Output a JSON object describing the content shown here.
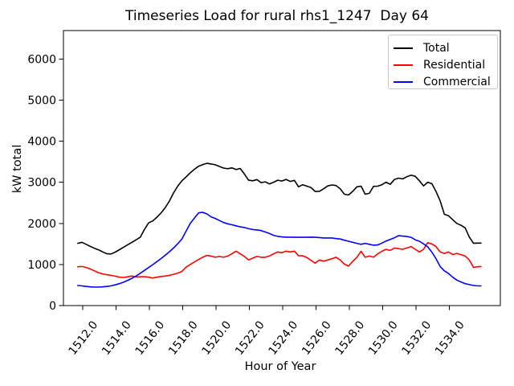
{
  "chart_data": {
    "type": "line",
    "title": "Timeseries Load for rural rhs1_1247  Day 64",
    "xlabel": "Hour of Year",
    "ylabel": "kW total",
    "xlim": [
      1510.84,
      1537.06
    ],
    "ylim": [
      0,
      6690
    ],
    "grid": false,
    "legend_position": "upper right",
    "xticks": {
      "values": [
        1512,
        1514,
        1516,
        1518,
        1520,
        1522,
        1524,
        1526,
        1528,
        1530,
        1532,
        1534
      ],
      "labels": [
        "1512.0",
        "1514.0",
        "1516.0",
        "1518.0",
        "1520.0",
        "1522.0",
        "1524.0",
        "1526.0",
        "1528.0",
        "1530.0",
        "1532.0",
        "1534.0"
      ]
    },
    "yticks": {
      "values": [
        0,
        1000,
        2000,
        3000,
        4000,
        5000,
        6000
      ],
      "labels": [
        "0",
        "1000",
        "2000",
        "3000",
        "4000",
        "5000",
        "6000"
      ]
    },
    "series": [
      {
        "name": "Total",
        "color": "#000000",
        "points": [
          [
            1511.7,
            1515
          ],
          [
            1511.95,
            1540
          ],
          [
            1512.2,
            1490
          ],
          [
            1512.45,
            1440
          ],
          [
            1512.7,
            1395
          ],
          [
            1512.95,
            1355
          ],
          [
            1513.2,
            1305
          ],
          [
            1513.45,
            1260
          ],
          [
            1513.7,
            1255
          ],
          [
            1513.95,
            1300
          ],
          [
            1514.2,
            1360
          ],
          [
            1514.45,
            1420
          ],
          [
            1514.7,
            1480
          ],
          [
            1514.95,
            1540
          ],
          [
            1515.2,
            1600
          ],
          [
            1515.45,
            1660
          ],
          [
            1515.7,
            1850
          ],
          [
            1515.95,
            2010
          ],
          [
            1516.2,
            2060
          ],
          [
            1516.45,
            2150
          ],
          [
            1516.7,
            2255
          ],
          [
            1516.95,
            2385
          ],
          [
            1517.2,
            2545
          ],
          [
            1517.45,
            2740
          ],
          [
            1517.7,
            2905
          ],
          [
            1517.95,
            3035
          ],
          [
            1518.2,
            3130
          ],
          [
            1518.45,
            3230
          ],
          [
            1518.7,
            3315
          ],
          [
            1518.95,
            3390
          ],
          [
            1519.2,
            3430
          ],
          [
            1519.45,
            3460
          ],
          [
            1519.7,
            3445
          ],
          [
            1519.95,
            3425
          ],
          [
            1520.2,
            3385
          ],
          [
            1520.45,
            3345
          ],
          [
            1520.7,
            3330
          ],
          [
            1520.95,
            3350
          ],
          [
            1521.2,
            3310
          ],
          [
            1521.45,
            3335
          ],
          [
            1521.7,
            3200
          ],
          [
            1521.95,
            3050
          ],
          [
            1522.2,
            3035
          ],
          [
            1522.45,
            3065
          ],
          [
            1522.7,
            2990
          ],
          [
            1522.95,
            3010
          ],
          [
            1523.2,
            2960
          ],
          [
            1523.45,
            3000
          ],
          [
            1523.7,
            3050
          ],
          [
            1523.95,
            3030
          ],
          [
            1524.2,
            3070
          ],
          [
            1524.45,
            3020
          ],
          [
            1524.7,
            3045
          ],
          [
            1524.95,
            2890
          ],
          [
            1525.2,
            2940
          ],
          [
            1525.45,
            2905
          ],
          [
            1525.7,
            2870
          ],
          [
            1525.95,
            2775
          ],
          [
            1526.2,
            2780
          ],
          [
            1526.45,
            2840
          ],
          [
            1526.7,
            2910
          ],
          [
            1526.95,
            2935
          ],
          [
            1527.2,
            2920
          ],
          [
            1527.45,
            2840
          ],
          [
            1527.7,
            2710
          ],
          [
            1527.95,
            2690
          ],
          [
            1528.2,
            2780
          ],
          [
            1528.45,
            2890
          ],
          [
            1528.7,
            2905
          ],
          [
            1528.95,
            2710
          ],
          [
            1529.2,
            2730
          ],
          [
            1529.45,
            2900
          ],
          [
            1529.7,
            2905
          ],
          [
            1529.95,
            2940
          ],
          [
            1530.2,
            3000
          ],
          [
            1530.45,
            2950
          ],
          [
            1530.7,
            3065
          ],
          [
            1530.95,
            3100
          ],
          [
            1531.2,
            3080
          ],
          [
            1531.45,
            3135
          ],
          [
            1531.7,
            3170
          ],
          [
            1531.95,
            3145
          ],
          [
            1532.2,
            3035
          ],
          [
            1532.45,
            2910
          ],
          [
            1532.7,
            3000
          ],
          [
            1532.95,
            2965
          ],
          [
            1533.2,
            2775
          ],
          [
            1533.45,
            2545
          ],
          [
            1533.7,
            2220
          ],
          [
            1533.95,
            2185
          ],
          [
            1534.2,
            2090
          ],
          [
            1534.45,
            2000
          ],
          [
            1534.7,
            1955
          ],
          [
            1534.95,
            1890
          ],
          [
            1535.2,
            1665
          ],
          [
            1535.45,
            1515
          ],
          [
            1535.7,
            1520
          ],
          [
            1535.9,
            1520
          ]
        ]
      },
      {
        "name": "Residential",
        "color": "#ff0000",
        "points": [
          [
            1511.7,
            945
          ],
          [
            1511.95,
            950
          ],
          [
            1512.2,
            930
          ],
          [
            1512.45,
            890
          ],
          [
            1512.7,
            845
          ],
          [
            1512.95,
            800
          ],
          [
            1513.2,
            770
          ],
          [
            1513.45,
            750
          ],
          [
            1513.7,
            735
          ],
          [
            1513.95,
            715
          ],
          [
            1514.2,
            690
          ],
          [
            1514.45,
            685
          ],
          [
            1514.7,
            700
          ],
          [
            1514.95,
            720
          ],
          [
            1515.2,
            695
          ],
          [
            1515.45,
            700
          ],
          [
            1515.7,
            705
          ],
          [
            1515.95,
            690
          ],
          [
            1516.2,
            670
          ],
          [
            1516.45,
            690
          ],
          [
            1516.7,
            708
          ],
          [
            1516.95,
            718
          ],
          [
            1517.2,
            735
          ],
          [
            1517.45,
            760
          ],
          [
            1517.7,
            790
          ],
          [
            1517.95,
            830
          ],
          [
            1518.2,
            935
          ],
          [
            1518.45,
            1000
          ],
          [
            1518.7,
            1060
          ],
          [
            1518.95,
            1120
          ],
          [
            1519.2,
            1175
          ],
          [
            1519.45,
            1220
          ],
          [
            1519.7,
            1205
          ],
          [
            1519.95,
            1175
          ],
          [
            1520.2,
            1195
          ],
          [
            1520.45,
            1175
          ],
          [
            1520.7,
            1205
          ],
          [
            1520.95,
            1260
          ],
          [
            1521.2,
            1325
          ],
          [
            1521.45,
            1260
          ],
          [
            1521.7,
            1195
          ],
          [
            1521.95,
            1110
          ],
          [
            1522.2,
            1155
          ],
          [
            1522.45,
            1195
          ],
          [
            1522.7,
            1175
          ],
          [
            1522.95,
            1175
          ],
          [
            1523.2,
            1205
          ],
          [
            1523.45,
            1260
          ],
          [
            1523.7,
            1305
          ],
          [
            1523.95,
            1285
          ],
          [
            1524.2,
            1325
          ],
          [
            1524.45,
            1305
          ],
          [
            1524.7,
            1325
          ],
          [
            1524.95,
            1215
          ],
          [
            1525.2,
            1210
          ],
          [
            1525.45,
            1170
          ],
          [
            1525.7,
            1100
          ],
          [
            1525.95,
            1030
          ],
          [
            1526.2,
            1110
          ],
          [
            1526.45,
            1080
          ],
          [
            1526.7,
            1110
          ],
          [
            1526.95,
            1140
          ],
          [
            1527.2,
            1175
          ],
          [
            1527.45,
            1110
          ],
          [
            1527.7,
            1010
          ],
          [
            1527.95,
            960
          ],
          [
            1528.2,
            1075
          ],
          [
            1528.45,
            1175
          ],
          [
            1528.7,
            1320
          ],
          [
            1528.95,
            1175
          ],
          [
            1529.2,
            1205
          ],
          [
            1529.45,
            1175
          ],
          [
            1529.7,
            1260
          ],
          [
            1529.95,
            1320
          ],
          [
            1530.2,
            1370
          ],
          [
            1530.45,
            1340
          ],
          [
            1530.7,
            1400
          ],
          [
            1530.95,
            1385
          ],
          [
            1531.2,
            1370
          ],
          [
            1531.45,
            1400
          ],
          [
            1531.7,
            1435
          ],
          [
            1531.95,
            1370
          ],
          [
            1532.2,
            1305
          ],
          [
            1532.45,
            1370
          ],
          [
            1532.7,
            1530
          ],
          [
            1532.95,
            1500
          ],
          [
            1533.2,
            1435
          ],
          [
            1533.45,
            1305
          ],
          [
            1533.7,
            1270
          ],
          [
            1533.95,
            1305
          ],
          [
            1534.2,
            1240
          ],
          [
            1534.45,
            1270
          ],
          [
            1534.7,
            1240
          ],
          [
            1534.95,
            1205
          ],
          [
            1535.2,
            1110
          ],
          [
            1535.45,
            930
          ],
          [
            1535.7,
            945
          ],
          [
            1535.9,
            950
          ]
        ]
      },
      {
        "name": "Commercial",
        "color": "#0000ff",
        "points": [
          [
            1511.7,
            490
          ],
          [
            1511.95,
            480
          ],
          [
            1512.2,
            465
          ],
          [
            1512.45,
            455
          ],
          [
            1512.7,
            450
          ],
          [
            1512.95,
            450
          ],
          [
            1513.2,
            455
          ],
          [
            1513.45,
            465
          ],
          [
            1513.7,
            480
          ],
          [
            1513.95,
            505
          ],
          [
            1514.2,
            535
          ],
          [
            1514.45,
            570
          ],
          [
            1514.7,
            615
          ],
          [
            1514.95,
            665
          ],
          [
            1515.2,
            720
          ],
          [
            1515.45,
            785
          ],
          [
            1515.7,
            855
          ],
          [
            1515.95,
            925
          ],
          [
            1516.2,
            995
          ],
          [
            1516.45,
            1070
          ],
          [
            1516.7,
            1145
          ],
          [
            1516.95,
            1225
          ],
          [
            1517.2,
            1310
          ],
          [
            1517.45,
            1400
          ],
          [
            1517.7,
            1505
          ],
          [
            1517.95,
            1620
          ],
          [
            1518.2,
            1810
          ],
          [
            1518.45,
            2000
          ],
          [
            1518.7,
            2130
          ],
          [
            1518.95,
            2255
          ],
          [
            1519.2,
            2270
          ],
          [
            1519.45,
            2230
          ],
          [
            1519.7,
            2160
          ],
          [
            1519.95,
            2120
          ],
          [
            1520.2,
            2070
          ],
          [
            1520.45,
            2020
          ],
          [
            1520.7,
            1990
          ],
          [
            1520.95,
            1965
          ],
          [
            1521.2,
            1940
          ],
          [
            1521.45,
            1915
          ],
          [
            1521.7,
            1900
          ],
          [
            1521.95,
            1870
          ],
          [
            1522.2,
            1850
          ],
          [
            1522.45,
            1840
          ],
          [
            1522.7,
            1825
          ],
          [
            1522.95,
            1790
          ],
          [
            1523.2,
            1755
          ],
          [
            1523.45,
            1710
          ],
          [
            1523.7,
            1685
          ],
          [
            1523.95,
            1670
          ],
          [
            1524.2,
            1665
          ],
          [
            1524.45,
            1665
          ],
          [
            1524.7,
            1660
          ],
          [
            1524.95,
            1660
          ],
          [
            1525.2,
            1660
          ],
          [
            1525.45,
            1660
          ],
          [
            1525.7,
            1665
          ],
          [
            1525.95,
            1660
          ],
          [
            1526.2,
            1655
          ],
          [
            1526.45,
            1645
          ],
          [
            1526.7,
            1645
          ],
          [
            1526.95,
            1645
          ],
          [
            1527.2,
            1630
          ],
          [
            1527.45,
            1620
          ],
          [
            1527.7,
            1590
          ],
          [
            1527.95,
            1565
          ],
          [
            1528.2,
            1540
          ],
          [
            1528.45,
            1515
          ],
          [
            1528.7,
            1490
          ],
          [
            1528.95,
            1515
          ],
          [
            1529.2,
            1490
          ],
          [
            1529.45,
            1470
          ],
          [
            1529.7,
            1475
          ],
          [
            1529.95,
            1520
          ],
          [
            1530.2,
            1570
          ],
          [
            1530.45,
            1610
          ],
          [
            1530.7,
            1650
          ],
          [
            1530.95,
            1700
          ],
          [
            1531.2,
            1690
          ],
          [
            1531.45,
            1680
          ],
          [
            1531.7,
            1660
          ],
          [
            1531.95,
            1600
          ],
          [
            1532.2,
            1565
          ],
          [
            1532.45,
            1500
          ],
          [
            1532.7,
            1430
          ],
          [
            1532.95,
            1300
          ],
          [
            1533.2,
            1140
          ],
          [
            1533.45,
            950
          ],
          [
            1533.7,
            845
          ],
          [
            1533.95,
            780
          ],
          [
            1534.2,
            690
          ],
          [
            1534.45,
            620
          ],
          [
            1534.7,
            575
          ],
          [
            1534.95,
            535
          ],
          [
            1535.2,
            510
          ],
          [
            1535.45,
            490
          ],
          [
            1535.7,
            480
          ],
          [
            1535.9,
            480
          ]
        ]
      }
    ]
  }
}
